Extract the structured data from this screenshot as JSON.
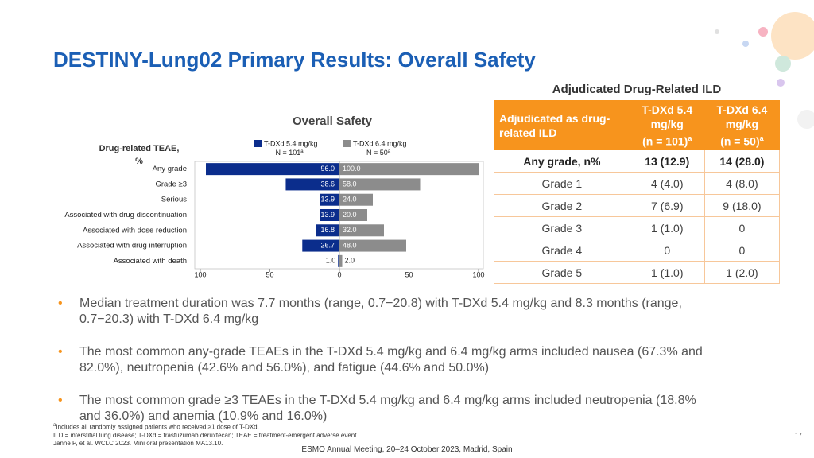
{
  "title": "DESTINY-Lung02 Primary Results: Overall Safety",
  "chart_data": {
    "type": "butterfly",
    "title": "Overall Safety",
    "y_label": "Drug-related TEAE, %",
    "categories": [
      "Any grade",
      "Grade ≥3",
      "Serious",
      "Associated with drug discontinuation",
      "Associated with dose reduction",
      "Associated with drug interruption",
      "Associated with death"
    ],
    "series": [
      {
        "name": "T-DXd 5.4 mg/kg",
        "n_label": "N = 101",
        "note": "a",
        "color": "#0b2d8c",
        "side": "left",
        "values": [
          96.0,
          38.6,
          13.9,
          13.9,
          16.8,
          26.7,
          1.0
        ],
        "value_labels": [
          "96.0",
          "38.6",
          "13.9",
          "13.9",
          "16.8",
          "26.7",
          "1.0"
        ]
      },
      {
        "name": "T-DXd 6.4 mg/kg",
        "n_label": "N = 50",
        "note": "a",
        "color": "#8c8c8c",
        "side": "right",
        "values": [
          100.0,
          58.0,
          24.0,
          20.0,
          32.0,
          48.0,
          2.0
        ],
        "value_labels": [
          "100.0",
          "58.0",
          "24.0",
          "20.0",
          "32.0",
          "48.0",
          "2.0"
        ]
      }
    ],
    "xlim": [
      0,
      100
    ],
    "xticks": [
      0,
      50,
      100
    ]
  },
  "table": {
    "title": "Adjudicated Drug-Related ILD",
    "header": [
      {
        "text": "Adjudicated as drug-related ILD"
      },
      {
        "text": "T-DXd 5.4 mg/kg",
        "n": "(n = 101)",
        "note": "a"
      },
      {
        "text": "T-DXd 6.4 mg/kg",
        "n": "(n = 50)",
        "note": "a"
      }
    ],
    "rows": [
      [
        "Any grade, n%",
        "13 (12.9)",
        "14 (28.0)"
      ],
      [
        "Grade 1",
        "4 (4.0)",
        "4 (8.0)"
      ],
      [
        "Grade 2",
        "7 (6.9)",
        "9 (18.0)"
      ],
      [
        "Grade 3",
        "1 (1.0)",
        "0"
      ],
      [
        "Grade 4",
        "0",
        "0"
      ],
      [
        "Grade 5",
        "1 (1.0)",
        "1 (2.0)"
      ]
    ]
  },
  "bullets": [
    "Median treatment duration was 7.7 months (range, 0.7−20.8) with T-DXd 5.4 mg/kg and 8.3 months (range, 0.7−20.3) with T-DXd 6.4 mg/kg",
    "The most common any-grade TEAEs in the T-DXd 5.4 mg/kg and 6.4 mg/kg arms included nausea (67.3% and 82.0%), neutropenia (42.6% and 56.0%), and fatigue (44.6% and 50.0%)",
    "The most common grade ≥3 TEAEs in the T-DXd 5.4 mg/kg and 6.4 mg/kg arms included neutropenia (18.8% and 36.0%) and anemia (10.9% and 16.0%)"
  ],
  "footnotes": [
    {
      "note": "a",
      "text": "Includes all randomly assigned patients who received ≥1 dose of T-DXd."
    },
    {
      "text": "ILD = interstitial lung disease; T-DXd = trastuzumab deruxtecan; TEAE = treatment-emergent adverse event."
    },
    {
      "text": "Jänne P, et al. WCLC 2023. Mini oral presentation MA13.10."
    }
  ],
  "footer": "ESMO Annual Meeting, 20–24 October 2023, Madrid, Spain",
  "page_number": "17"
}
